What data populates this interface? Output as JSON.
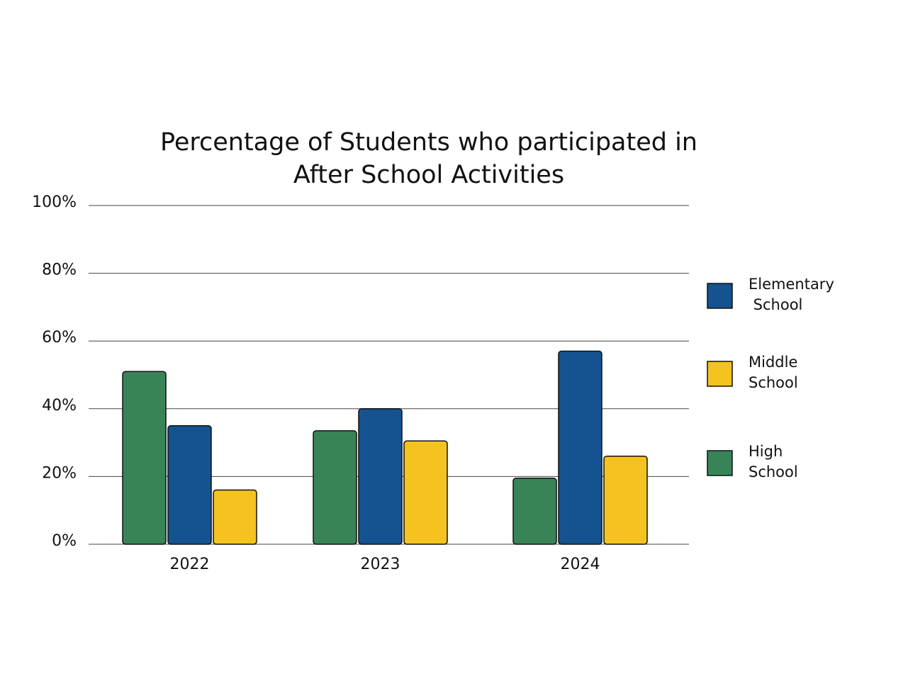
{
  "chart_data": {
    "type": "bar",
    "title": "Percentage of Students who participated in After School Activities",
    "categories": [
      "2022",
      "2023",
      "2024"
    ],
    "series": [
      {
        "name": "High School",
        "color": "#388457",
        "values": [
          51,
          33.5,
          19.5
        ]
      },
      {
        "name": "Elementary School",
        "color": "#14538f",
        "values": [
          35,
          40,
          57
        ]
      },
      {
        "name": "Middle School",
        "color": "#f4c31f",
        "values": [
          16,
          30.5,
          26
        ]
      }
    ],
    "y_ticks": [
      "0%",
      "20%",
      "40%",
      "60%",
      "80%",
      "100%"
    ],
    "ylim": [
      0,
      100
    ],
    "grid": true,
    "legend": {
      "position": "right",
      "items": [
        {
          "series": "Elementary School",
          "lines": [
            "Elementary",
            " School"
          ]
        },
        {
          "series": "Middle School",
          "lines": [
            "Middle",
            "School"
          ]
        },
        {
          "series": "High School",
          "lines": [
            "High",
            "School"
          ]
        }
      ]
    }
  }
}
